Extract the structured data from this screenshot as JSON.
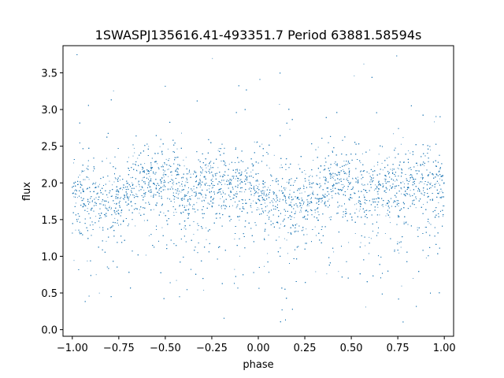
{
  "chart_data": {
    "type": "scatter",
    "title": "1SWASPJ135616.41-493351.7 Period 63881.58594s",
    "xlabel": "phase",
    "ylabel": "flux",
    "xlim": [
      -1.05,
      1.05
    ],
    "ylim": [
      -0.09,
      3.87
    ],
    "xticks": [
      -1.0,
      -0.75,
      -0.5,
      -0.25,
      0.0,
      0.25,
      0.5,
      0.75,
      1.0
    ],
    "xtick_labels": [
      "−1.00",
      "−0.75",
      "−0.50",
      "−0.25",
      "0.00",
      "0.25",
      "0.50",
      "0.75",
      "1.00"
    ],
    "yticks": [
      0.0,
      0.5,
      1.0,
      1.5,
      2.0,
      2.5,
      3.0,
      3.5
    ],
    "ytick_labels": [
      "0.0",
      "0.5",
      "1.0",
      "1.5",
      "2.0",
      "2.5",
      "3.0",
      "3.5"
    ],
    "grid": false,
    "marker_color": "#1f77b4",
    "series": [
      {
        "x": [
          -1.0,
          -0.9,
          -0.8,
          -0.7,
          -0.6,
          -0.5,
          -0.4,
          -0.3,
          -0.2,
          -0.1,
          0.0,
          0.1,
          0.2,
          0.3,
          0.4,
          0.5,
          0.6,
          0.7,
          0.8,
          0.9,
          1.0
        ],
        "y": [
          1.93,
          1.8,
          1.72,
          1.9,
          2.1,
          2.02,
          1.9,
          1.95,
          2.02,
          2.0,
          1.95,
          1.78,
          1.7,
          1.85,
          2.05,
          2.0,
          1.9,
          1.92,
          2.0,
          1.97,
          1.95
        ],
        "scatter_sd": 0.35,
        "n_points": 9000
      }
    ]
  }
}
